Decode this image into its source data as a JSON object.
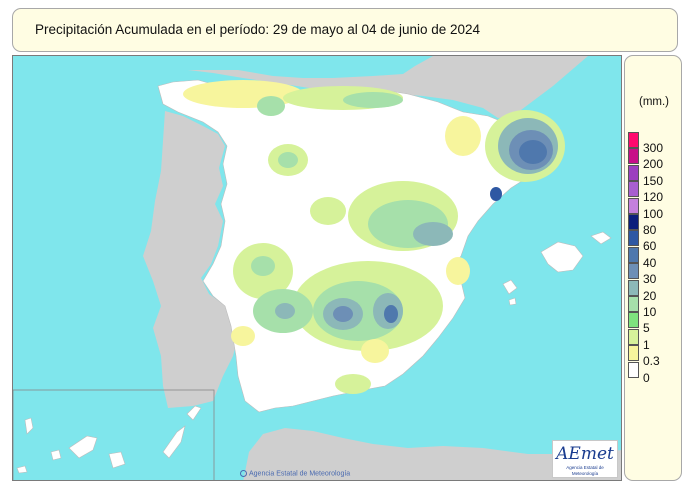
{
  "map": {
    "title": "Precipitación Acumulada en el período: 29  de mayo  al 04  de junio de  2024",
    "legend": {
      "unit": "(mm.)",
      "classes": [
        {
          "label": "300",
          "color": "#ff0a6e"
        },
        {
          "label": "200",
          "color": "#c70f88"
        },
        {
          "label": "150",
          "color": "#9c3fbf"
        },
        {
          "label": "120",
          "color": "#a85fd0"
        },
        {
          "label": "100",
          "color": "#c480dc"
        },
        {
          "label": "80",
          "color": "#0c1f7c"
        },
        {
          "label": "60",
          "color": "#2e58a3"
        },
        {
          "label": "40",
          "color": "#4f78ad"
        },
        {
          "label": "30",
          "color": "#6d8fb6"
        },
        {
          "label": "20",
          "color": "#8cb8b8"
        },
        {
          "label": "10",
          "color": "#a6e0aa"
        },
        {
          "label": "5",
          "color": "#7ee37e"
        },
        {
          "label": "1",
          "color": "#d6f29a"
        },
        {
          "label": "0.3",
          "color": "#f7f59d"
        },
        {
          "label": "0",
          "color": "#ffffff"
        }
      ]
    },
    "colors": {
      "sea": "#7fe6ec",
      "land_foreign": "#cfcfcf",
      "land_spain": "#ffffff",
      "borders": "#bdbdbd",
      "frame_fill": "#fffde3"
    },
    "credit": "Agencia Estatal de Meteorología",
    "logo": {
      "word": "AEmet",
      "subtitle": "Agencia Estatal de Meteorología"
    }
  }
}
